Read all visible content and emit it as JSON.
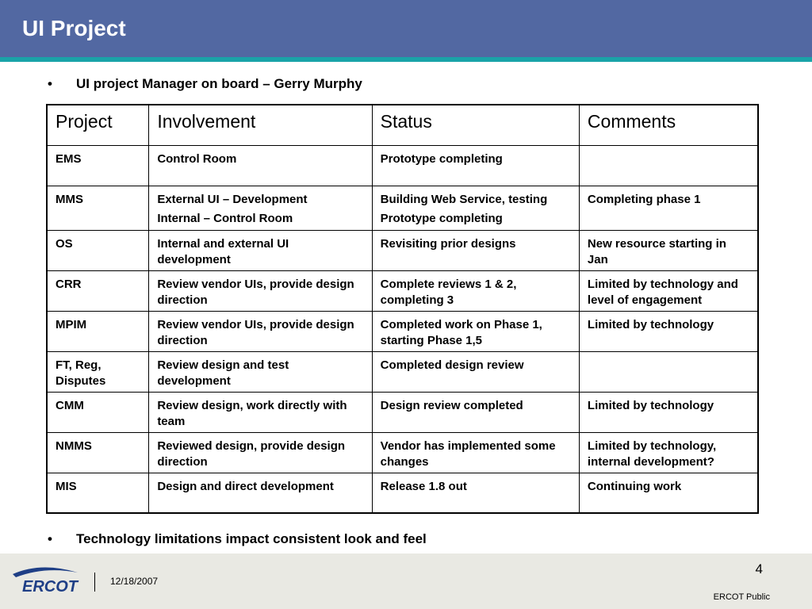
{
  "slide": {
    "title": "UI Project",
    "bullets": [
      "UI project Manager on board – Gerry Murphy",
      "Technology limitations impact consistent look and feel"
    ],
    "bullet_glyph": "•"
  },
  "table": {
    "headers": [
      "Project",
      "Involvement",
      "Status",
      "Comments"
    ],
    "rows": [
      {
        "project": "EMS",
        "involvement": [
          "Control Room"
        ],
        "status": [
          "Prototype completing"
        ],
        "comments": [
          ""
        ]
      },
      {
        "project": "MMS",
        "involvement": [
          "External UI – Development",
          "Internal – Control Room"
        ],
        "status": [
          "Building Web Service, testing",
          "Prototype completing"
        ],
        "comments": [
          "Completing phase 1"
        ]
      },
      {
        "project": "OS",
        "involvement": [
          "Internal and external UI development"
        ],
        "status": [
          "Revisiting prior designs"
        ],
        "comments": [
          "New resource starting in Jan"
        ]
      },
      {
        "project": "CRR",
        "involvement": [
          "Review vendor UIs, provide design direction"
        ],
        "status": [
          "Complete reviews 1 & 2, completing 3"
        ],
        "comments": [
          "Limited by technology and level of engagement"
        ]
      },
      {
        "project": "MPIM",
        "involvement": [
          "Review vendor UIs, provide design direction"
        ],
        "status": [
          "Completed work on Phase 1, starting Phase 1,5"
        ],
        "comments": [
          "Limited by technology"
        ]
      },
      {
        "project": "FT, Reg, Disputes",
        "involvement": [
          "Review design and test development"
        ],
        "status": [
          "Completed design review"
        ],
        "comments": [
          ""
        ]
      },
      {
        "project": "CMM",
        "involvement": [
          "Review design, work directly with team"
        ],
        "status": [
          "Design review completed"
        ],
        "comments": [
          "Limited by technology"
        ]
      },
      {
        "project": "NMMS",
        "involvement": [
          "Reviewed design, provide design direction"
        ],
        "status": [
          "Vendor has implemented some changes"
        ],
        "comments": [
          "Limited by technology, internal development?"
        ]
      },
      {
        "project": "MIS",
        "involvement": [
          "Design and direct development"
        ],
        "status": [
          "Release 1.8 out"
        ],
        "comments": [
          "Continuing work"
        ]
      }
    ]
  },
  "footer": {
    "logo_text": "ERCOT",
    "date": "12/18/2007",
    "page_number": "4",
    "classification": "ERCOT Public"
  },
  "colors": {
    "title_bar": "#5268a2",
    "accent_line": "#1aa3a8",
    "footer_bg": "#e9e9e3",
    "logo_blue": "#1f3f86"
  }
}
